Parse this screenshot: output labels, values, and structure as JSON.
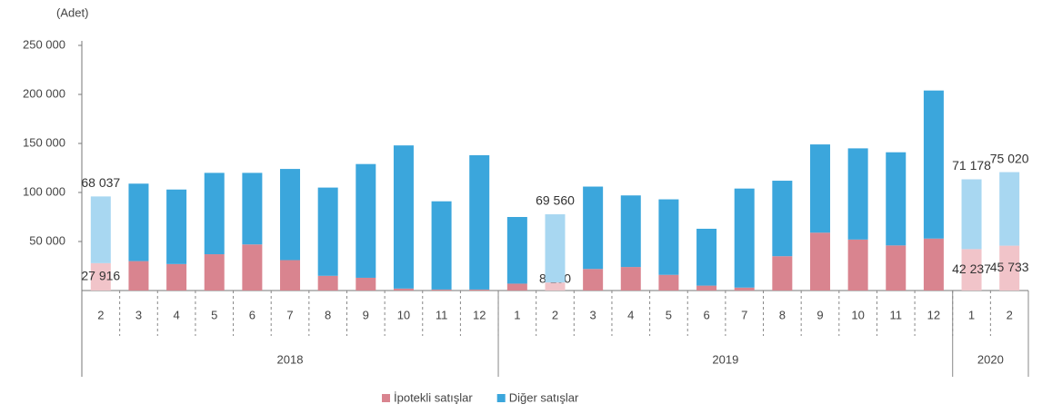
{
  "chart_data": {
    "type": "stacked_bar",
    "y_label": "(Adet)",
    "groups": [
      {
        "name": "2018",
        "categories": [
          "2",
          "3",
          "4",
          "5",
          "6",
          "7",
          "8",
          "9",
          "10",
          "11",
          "12"
        ]
      },
      {
        "name": "2019",
        "categories": [
          "1",
          "2",
          "3",
          "4",
          "5",
          "6",
          "7",
          "8",
          "9",
          "10",
          "11",
          "12"
        ]
      },
      {
        "name": "2020",
        "categories": [
          "1",
          "2"
        ]
      }
    ],
    "series": [
      {
        "name": "İpotekli satışlar",
        "color": "#d9848f",
        "highlight_color": "#f1c4c9",
        "values": [
          27916,
          30000,
          27000,
          37000,
          47000,
          31000,
          15000,
          13000,
          2000,
          1000,
          1000,
          7000,
          8190,
          22000,
          24000,
          16000,
          5000,
          3000,
          35000,
          59000,
          52000,
          46000,
          53000,
          42237,
          45733
        ],
        "value_labels": [
          "27 916",
          null,
          null,
          null,
          null,
          null,
          null,
          null,
          null,
          null,
          null,
          null,
          "8 190",
          null,
          null,
          null,
          null,
          null,
          null,
          null,
          null,
          null,
          null,
          "42 237",
          "45 733"
        ]
      },
      {
        "name": "Diğer satışlar",
        "color": "#3ba6dc",
        "highlight_color": "#a8d7f1",
        "values": [
          68037,
          79000,
          76000,
          83000,
          73000,
          93000,
          90000,
          116000,
          146000,
          90000,
          137000,
          68000,
          69560,
          84000,
          73000,
          77000,
          58000,
          101000,
          77000,
          90000,
          93000,
          95000,
          151000,
          71178,
          75020
        ],
        "value_labels": [
          "68 037",
          null,
          null,
          null,
          null,
          null,
          null,
          null,
          null,
          null,
          null,
          null,
          "69 560",
          null,
          null,
          null,
          null,
          null,
          null,
          null,
          null,
          null,
          null,
          "71 178",
          "75 020"
        ]
      }
    ],
    "ylim": [
      0,
      250000
    ],
    "yticks": [
      {
        "value": 50000,
        "label": "50 000"
      },
      {
        "value": 100000,
        "label": "100 000"
      },
      {
        "value": 150000,
        "label": "150 000"
      },
      {
        "value": 200000,
        "label": "200 000"
      },
      {
        "value": 250000,
        "label": "250 000"
      }
    ],
    "grid": false,
    "legend": "bottom"
  }
}
